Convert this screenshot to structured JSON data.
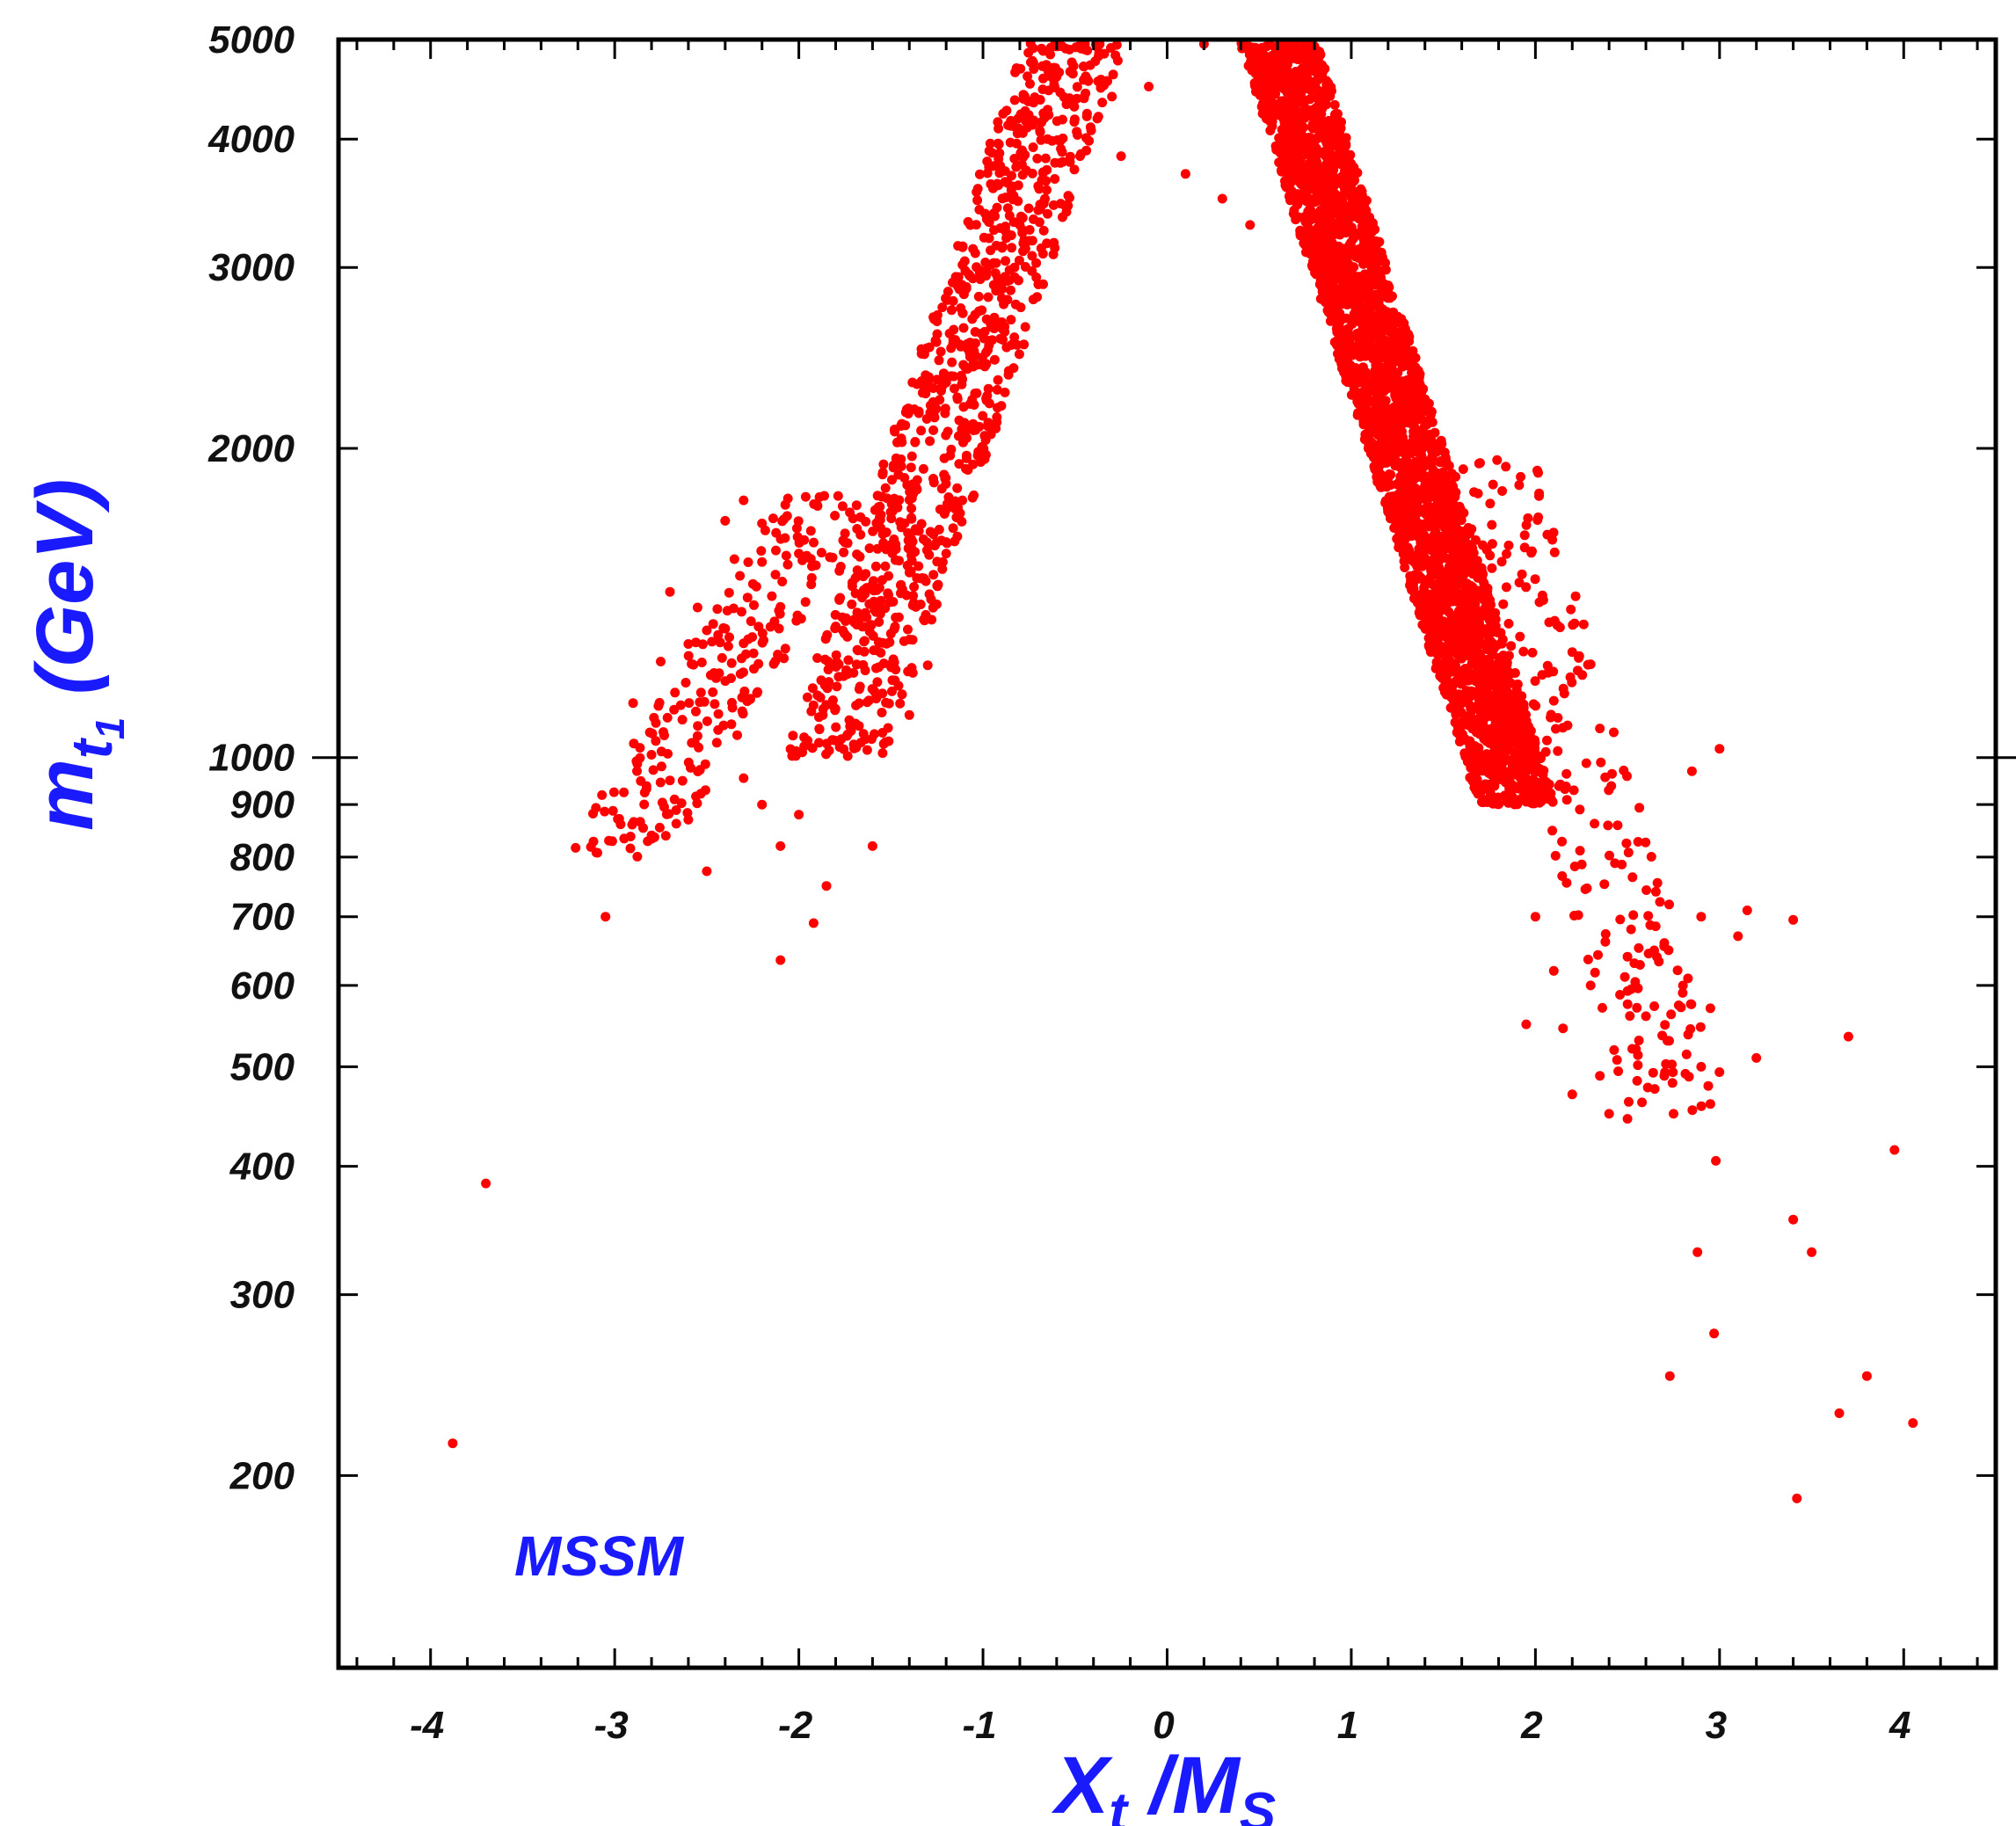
{
  "chart_data": {
    "type": "scatter",
    "title": "",
    "xlabel": {
      "main": "X",
      "sub": "t",
      "slash": " /M",
      "sub2": "S"
    },
    "ylabel": {
      "main": "m",
      "sub": "t",
      "subsub": "1",
      "unit": " (GeV)"
    },
    "x_scale": "linear",
    "y_scale": "log",
    "xlim": [
      -4.5,
      4.5
    ],
    "ylim": [
      130,
      5000
    ],
    "x_ticks": [
      {
        "value": -4,
        "label": "-4"
      },
      {
        "value": -3,
        "label": "-3"
      },
      {
        "value": -2,
        "label": "-2"
      },
      {
        "value": -1,
        "label": "-1"
      },
      {
        "value": 0,
        "label": "0"
      },
      {
        "value": 1,
        "label": "1"
      },
      {
        "value": 2,
        "label": "2"
      },
      {
        "value": 3,
        "label": "3"
      },
      {
        "value": 4,
        "label": "4"
      }
    ],
    "y_ticks": [
      {
        "value": 200,
        "label": "200"
      },
      {
        "value": 300,
        "label": "300"
      },
      {
        "value": 400,
        "label": "400"
      },
      {
        "value": 500,
        "label": "500"
      },
      {
        "value": 600,
        "label": "600"
      },
      {
        "value": 700,
        "label": "700"
      },
      {
        "value": 800,
        "label": "800"
      },
      {
        "value": 900,
        "label": "900"
      },
      {
        "value": 1000,
        "label": "1000"
      },
      {
        "value": 2000,
        "label": "2000"
      },
      {
        "value": 3000,
        "label": "3000"
      },
      {
        "value": 4000,
        "label": "4000"
      },
      {
        "value": 5000,
        "label": "5000"
      }
    ],
    "grid": false,
    "annotation": "MSSM",
    "series_color": "#ff0000",
    "regions": [
      {
        "x_range": [
          -3.0,
          -1.8
        ],
        "y_range": [
          800,
          1800
        ],
        "density": "sparse"
      },
      {
        "x_range": [
          -1.8,
          -0.5
        ],
        "y_range": [
          1000,
          5000
        ],
        "density": "medium"
      },
      {
        "x_range": [
          0.6,
          1.9
        ],
        "y_range": [
          900,
          5000
        ],
        "density": "dense"
      },
      {
        "x_range": [
          1.7,
          2.8
        ],
        "y_range": [
          450,
          2000
        ],
        "density": "sparse"
      }
    ],
    "points": [
      {
        "x": -3.88,
        "y": 215
      },
      {
        "x": -3.7,
        "y": 385
      },
      {
        "x": -3.05,
        "y": 700
      },
      {
        "x": -2.1,
        "y": 635
      },
      {
        "x": -1.92,
        "y": 690
      },
      {
        "x": -1.85,
        "y": 750
      },
      {
        "x": -1.6,
        "y": 820
      },
      {
        "x": -2.5,
        "y": 775
      },
      {
        "x": -2.8,
        "y": 840
      },
      {
        "x": -2.95,
        "y": 925
      },
      {
        "x": -2.7,
        "y": 950
      },
      {
        "x": -2.6,
        "y": 870
      },
      {
        "x": -2.3,
        "y": 955
      },
      {
        "x": -2.2,
        "y": 900
      },
      {
        "x": -2.0,
        "y": 880
      },
      {
        "x": -2.1,
        "y": 820
      },
      {
        "x": -2.9,
        "y": 1130
      },
      {
        "x": -2.75,
        "y": 1240
      },
      {
        "x": -2.6,
        "y": 1290
      },
      {
        "x": -2.5,
        "y": 1330
      },
      {
        "x": -2.7,
        "y": 1450
      },
      {
        "x": -2.55,
        "y": 1400
      },
      {
        "x": -2.4,
        "y": 1700
      },
      {
        "x": -2.3,
        "y": 1780
      },
      {
        "x": -2.35,
        "y": 1560
      },
      {
        "x": -2.2,
        "y": 1690
      },
      {
        "x": -2.0,
        "y": 1580
      },
      {
        "x": -1.9,
        "y": 1250
      },
      {
        "x": -1.9,
        "y": 1760
      },
      {
        "x": -1.75,
        "y": 1620
      },
      {
        "x": -1.65,
        "y": 1450
      },
      {
        "x": -1.5,
        "y": 1320
      },
      {
        "x": -1.4,
        "y": 1100
      },
      {
        "x": -1.3,
        "y": 1230
      },
      {
        "x": -1.2,
        "y": 1580
      },
      {
        "x": -1.05,
        "y": 1800
      },
      {
        "x": -1.0,
        "y": 2000
      },
      {
        "x": -0.9,
        "y": 2200
      },
      {
        "x": -0.95,
        "y": 2550
      },
      {
        "x": -0.85,
        "y": 2850
      },
      {
        "x": -0.8,
        "y": 3300
      },
      {
        "x": -0.7,
        "y": 3600
      },
      {
        "x": -0.65,
        "y": 4000
      },
      {
        "x": -0.6,
        "y": 4600
      },
      {
        "x": -0.55,
        "y": 4900
      },
      {
        "x": -0.3,
        "y": 4400
      },
      {
        "x": -0.25,
        "y": 3850
      },
      {
        "x": -0.1,
        "y": 4500
      },
      {
        "x": 0.1,
        "y": 3700
      },
      {
        "x": 0.2,
        "y": 4950
      },
      {
        "x": 0.3,
        "y": 3500
      },
      {
        "x": 0.45,
        "y": 3300
      },
      {
        "x": 3.0,
        "y": 1020
      },
      {
        "x": 2.85,
        "y": 970
      },
      {
        "x": 2.9,
        "y": 700
      },
      {
        "x": 3.1,
        "y": 670
      },
      {
        "x": 3.15,
        "y": 710
      },
      {
        "x": 3.4,
        "y": 695
      },
      {
        "x": 2.95,
        "y": 570
      },
      {
        "x": 2.8,
        "y": 590
      },
      {
        "x": 3.2,
        "y": 510
      },
      {
        "x": 2.9,
        "y": 500
      },
      {
        "x": 2.95,
        "y": 460
      },
      {
        "x": 2.75,
        "y": 450
      },
      {
        "x": 3.7,
        "y": 535
      },
      {
        "x": 3.95,
        "y": 415
      },
      {
        "x": 2.98,
        "y": 405
      },
      {
        "x": 3.4,
        "y": 355
      },
      {
        "x": 3.5,
        "y": 330
      },
      {
        "x": 2.88,
        "y": 330
      },
      {
        "x": 2.97,
        "y": 275
      },
      {
        "x": 2.73,
        "y": 250
      },
      {
        "x": 3.65,
        "y": 230
      },
      {
        "x": 3.8,
        "y": 250
      },
      {
        "x": 4.05,
        "y": 225
      },
      {
        "x": 3.42,
        "y": 190
      },
      {
        "x": 2.4,
        "y": 450
      },
      {
        "x": 2.5,
        "y": 445
      },
      {
        "x": 2.35,
        "y": 490
      },
      {
        "x": 2.2,
        "y": 470
      },
      {
        "x": 2.45,
        "y": 495
      },
      {
        "x": 2.7,
        "y": 490
      },
      {
        "x": 2.15,
        "y": 545
      },
      {
        "x": 1.95,
        "y": 550
      },
      {
        "x": 2.3,
        "y": 600
      },
      {
        "x": 2.6,
        "y": 560
      },
      {
        "x": 2.1,
        "y": 620
      },
      {
        "x": 2.5,
        "y": 640
      },
      {
        "x": 2.0,
        "y": 700
      },
      {
        "x": 2.7,
        "y": 660
      }
    ]
  }
}
